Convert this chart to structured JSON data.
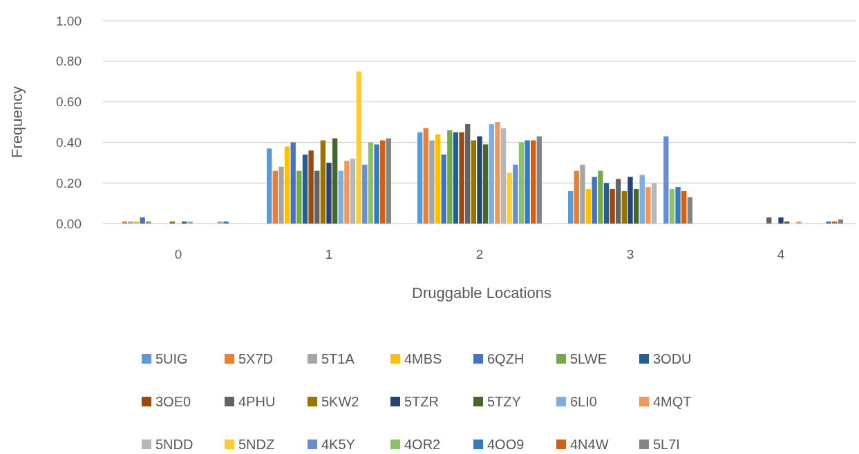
{
  "chart_data": {
    "type": "bar",
    "xlabel": "Druggable Locations",
    "ylabel": "Frequency",
    "categories": [
      "0",
      "1",
      "2",
      "3",
      "4"
    ],
    "ylim": [
      0,
      1
    ],
    "yticks": [
      {
        "value": 0,
        "label": "0.00"
      },
      {
        "value": 0.2,
        "label": "0.20"
      },
      {
        "value": 0.4,
        "label": "0.40"
      },
      {
        "value": 0.6,
        "label": "0.60"
      },
      {
        "value": 0.8,
        "label": "0.80"
      },
      {
        "value": 1,
        "label": "1.00"
      }
    ],
    "grid": "y",
    "legend": "bottom",
    "series": [
      {
        "name": "5UIG",
        "color": "#5b9bd5",
        "values": [
          0,
          0.37,
          0.45,
          0.16,
          0
        ]
      },
      {
        "name": "5X7D",
        "color": "#ed7d31",
        "values": [
          0.01,
          0.26,
          0.47,
          0.26,
          0
        ]
      },
      {
        "name": "5T1A",
        "color": "#a5a5a5",
        "values": [
          0.01,
          0.28,
          0.41,
          0.29,
          0
        ]
      },
      {
        "name": "4MBS",
        "color": "#ffc000",
        "values": [
          0.01,
          0.38,
          0.44,
          0.17,
          0
        ]
      },
      {
        "name": "6QZH",
        "color": "#4472c4",
        "values": [
          0.03,
          0.4,
          0.34,
          0.23,
          0
        ]
      },
      {
        "name": "5LWE",
        "color": "#70ad47",
        "values": [
          0.01,
          0.26,
          0.46,
          0.26,
          0
        ]
      },
      {
        "name": "3ODU",
        "color": "#255e91",
        "values": [
          0,
          0.34,
          0.45,
          0.2,
          0
        ]
      },
      {
        "name": "3OE0",
        "color": "#9e480e",
        "values": [
          0,
          0.36,
          0.45,
          0.17,
          0
        ]
      },
      {
        "name": "4PHU",
        "color": "#636363",
        "values": [
          0,
          0.26,
          0.49,
          0.22,
          0.03
        ]
      },
      {
        "name": "5KW2",
        "color": "#997300",
        "values": [
          0.01,
          0.41,
          0.41,
          0.16,
          0
        ]
      },
      {
        "name": "5TZR",
        "color": "#264478",
        "values": [
          0,
          0.3,
          0.43,
          0.23,
          0.03
        ]
      },
      {
        "name": "5TZY",
        "color": "#43682b",
        "values": [
          0.01,
          0.42,
          0.39,
          0.17,
          0.01
        ]
      },
      {
        "name": "6LI0",
        "color": "#7cafdd",
        "values": [
          0.01,
          0.26,
          0.49,
          0.24,
          0
        ]
      },
      {
        "name": "4MQT",
        "color": "#f1975a",
        "values": [
          0,
          0.31,
          0.5,
          0.18,
          0.01
        ]
      },
      {
        "name": "5NDD",
        "color": "#b7b7b7",
        "values": [
          0,
          0.32,
          0.47,
          0.2,
          0
        ]
      },
      {
        "name": "5NDZ",
        "color": "#ffcd33",
        "values": [
          0,
          0.75,
          0.25,
          0,
          0
        ]
      },
      {
        "name": "4K5Y",
        "color": "#698ed0",
        "values": [
          0,
          0.29,
          0.29,
          0.43,
          0
        ]
      },
      {
        "name": "4OR2",
        "color": "#8cc168",
        "values": [
          0.01,
          0.4,
          0.4,
          0.17,
          0
        ]
      },
      {
        "name": "4OO9",
        "color": "#327dc2",
        "values": [
          0.01,
          0.39,
          0.41,
          0.18,
          0.01
        ]
      },
      {
        "name": "4N4W",
        "color": "#d26012",
        "values": [
          0,
          0.41,
          0.41,
          0.16,
          0.01
        ]
      },
      {
        "name": "5L7I",
        "color": "#848484",
        "values": [
          0,
          0.42,
          0.43,
          0.13,
          0.02
        ]
      }
    ]
  }
}
